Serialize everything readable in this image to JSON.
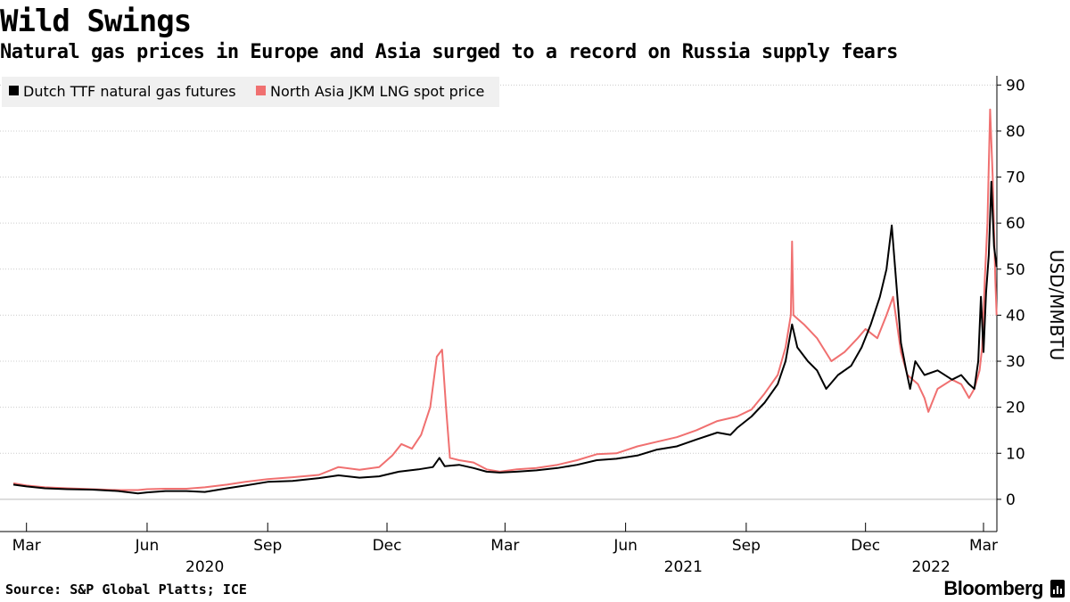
{
  "title": "Wild Swings",
  "subtitle": "Natural gas prices in Europe and Asia surged to a record on Russia supply fears",
  "source": "Source: S&P Global Platts; ICE",
  "brand": "Bloomberg",
  "colors": {
    "ttf": "#000000",
    "jkm": "#f07070",
    "grid": "#cccccc",
    "axis": "#000000",
    "legend_bg": "#f0f0f0"
  },
  "chart_data": {
    "type": "line",
    "ylabel": "USD/MMBTU",
    "ylim": [
      -7,
      92
    ],
    "yticks": [
      0,
      10,
      20,
      30,
      40,
      50,
      60,
      70,
      80,
      90
    ],
    "xlim": [
      "2020-02-20",
      "2022-03-01"
    ],
    "grid": "horizontal",
    "legend": "top-left",
    "xticks": [
      {
        "date": "2020-03-01",
        "label": "Mar"
      },
      {
        "date": "2020-06-01",
        "label": "Jun"
      },
      {
        "date": "2020-09-01",
        "label": "Sep"
      },
      {
        "date": "2020-12-01",
        "label": "Dec"
      },
      {
        "date": "2021-03-01",
        "label": "Mar"
      },
      {
        "date": "2021-06-01",
        "label": "Jun"
      },
      {
        "date": "2021-09-01",
        "label": "Sep"
      },
      {
        "date": "2021-12-01",
        "label": "Dec"
      },
      {
        "date": "2022-03-01",
        "label": "Mar"
      }
    ],
    "years": [
      {
        "date": "2020-07-15",
        "label": "2020"
      },
      {
        "date": "2021-07-15",
        "label": "2021"
      },
      {
        "date": "2022-01-20",
        "label": "2022"
      }
    ],
    "series": [
      {
        "name": "Dutch TTF natural gas futures",
        "points": [
          [
            "2020-02-20",
            3.2
          ],
          [
            "2020-03-01",
            2.8
          ],
          [
            "2020-03-15",
            2.4
          ],
          [
            "2020-04-01",
            2.2
          ],
          [
            "2020-04-20",
            2.1
          ],
          [
            "2020-05-10",
            1.8
          ],
          [
            "2020-05-25",
            1.3
          ],
          [
            "2020-06-01",
            1.5
          ],
          [
            "2020-06-15",
            1.8
          ],
          [
            "2020-07-01",
            1.8
          ],
          [
            "2020-07-15",
            1.6
          ],
          [
            "2020-08-01",
            2.4
          ],
          [
            "2020-08-15",
            3.0
          ],
          [
            "2020-09-01",
            3.8
          ],
          [
            "2020-09-20",
            4.0
          ],
          [
            "2020-10-10",
            4.6
          ],
          [
            "2020-10-25",
            5.2
          ],
          [
            "2020-11-10",
            4.7
          ],
          [
            "2020-11-25",
            5.0
          ],
          [
            "2020-12-10",
            6.0
          ],
          [
            "2020-12-25",
            6.5
          ],
          [
            "2021-01-05",
            7.0
          ],
          [
            "2021-01-10",
            9.0
          ],
          [
            "2021-01-14",
            7.2
          ],
          [
            "2021-01-25",
            7.5
          ],
          [
            "2021-02-05",
            6.8
          ],
          [
            "2021-02-15",
            6.0
          ],
          [
            "2021-02-25",
            5.8
          ],
          [
            "2021-03-10",
            6.0
          ],
          [
            "2021-03-25",
            6.3
          ],
          [
            "2021-04-10",
            6.8
          ],
          [
            "2021-04-25",
            7.5
          ],
          [
            "2021-05-10",
            8.5
          ],
          [
            "2021-05-25",
            8.8
          ],
          [
            "2021-06-10",
            9.5
          ],
          [
            "2021-06-25",
            10.8
          ],
          [
            "2021-07-10",
            11.5
          ],
          [
            "2021-07-25",
            13.0
          ],
          [
            "2021-08-10",
            14.5
          ],
          [
            "2021-08-20",
            14.0
          ],
          [
            "2021-08-25",
            15.5
          ],
          [
            "2021-09-05",
            18.0
          ],
          [
            "2021-09-15",
            21.0
          ],
          [
            "2021-09-25",
            25.0
          ],
          [
            "2021-10-01",
            30.0
          ],
          [
            "2021-10-06",
            38.0
          ],
          [
            "2021-10-10",
            33.0
          ],
          [
            "2021-10-18",
            30.0
          ],
          [
            "2021-10-25",
            28.0
          ],
          [
            "2021-11-01",
            24.0
          ],
          [
            "2021-11-10",
            27.0
          ],
          [
            "2021-11-20",
            29.0
          ],
          [
            "2021-11-28",
            33.0
          ],
          [
            "2021-12-05",
            38.0
          ],
          [
            "2021-12-12",
            44.0
          ],
          [
            "2021-12-17",
            50.0
          ],
          [
            "2021-12-21",
            59.5
          ],
          [
            "2021-12-25",
            45.0
          ],
          [
            "2021-12-28",
            34.0
          ],
          [
            "2022-01-01",
            28.0
          ],
          [
            "2022-01-04",
            24.0
          ],
          [
            "2022-01-08",
            30.0
          ],
          [
            "2022-01-15",
            27.0
          ],
          [
            "2022-01-25",
            28.0
          ],
          [
            "2022-02-05",
            26.0
          ],
          [
            "2022-02-12",
            27.0
          ],
          [
            "2022-02-18",
            25.0
          ],
          [
            "2022-02-22",
            24.0
          ],
          [
            "2022-02-25",
            30.0
          ],
          [
            "2022-02-27",
            44.0
          ],
          [
            "2022-03-01",
            32.0
          ],
          [
            "2022-03-03",
            45.0
          ],
          [
            "2022-03-05",
            53.0
          ],
          [
            "2022-03-07",
            69.0
          ],
          [
            "2022-03-09",
            55.0
          ],
          [
            "2022-03-11",
            50.5
          ]
        ]
      },
      {
        "name": "North Asia JKM LNG spot price",
        "points": [
          [
            "2020-02-20",
            3.5
          ],
          [
            "2020-03-01",
            3.0
          ],
          [
            "2020-03-15",
            2.6
          ],
          [
            "2020-04-01",
            2.4
          ],
          [
            "2020-04-20",
            2.2
          ],
          [
            "2020-05-10",
            2.0
          ],
          [
            "2020-05-25",
            2.0
          ],
          [
            "2020-06-01",
            2.2
          ],
          [
            "2020-06-15",
            2.3
          ],
          [
            "2020-07-01",
            2.3
          ],
          [
            "2020-07-15",
            2.6
          ],
          [
            "2020-08-01",
            3.2
          ],
          [
            "2020-08-15",
            3.8
          ],
          [
            "2020-09-01",
            4.4
          ],
          [
            "2020-09-20",
            4.8
          ],
          [
            "2020-10-10",
            5.3
          ],
          [
            "2020-10-25",
            7.0
          ],
          [
            "2020-11-10",
            6.4
          ],
          [
            "2020-11-25",
            7.0
          ],
          [
            "2020-12-05",
            9.5
          ],
          [
            "2020-12-12",
            12.0
          ],
          [
            "2020-12-20",
            11.0
          ],
          [
            "2020-12-27",
            14.0
          ],
          [
            "2021-01-03",
            20.0
          ],
          [
            "2021-01-08",
            31.0
          ],
          [
            "2021-01-12",
            32.5
          ],
          [
            "2021-01-15",
            20.0
          ],
          [
            "2021-01-18",
            9.0
          ],
          [
            "2021-01-25",
            8.5
          ],
          [
            "2021-02-05",
            8.0
          ],
          [
            "2021-02-15",
            6.5
          ],
          [
            "2021-02-25",
            6.0
          ],
          [
            "2021-03-10",
            6.5
          ],
          [
            "2021-03-25",
            6.8
          ],
          [
            "2021-04-10",
            7.5
          ],
          [
            "2021-04-25",
            8.5
          ],
          [
            "2021-05-10",
            9.8
          ],
          [
            "2021-05-25",
            10.0
          ],
          [
            "2021-06-10",
            11.5
          ],
          [
            "2021-06-25",
            12.5
          ],
          [
            "2021-07-10",
            13.5
          ],
          [
            "2021-07-25",
            15.0
          ],
          [
            "2021-08-10",
            17.0
          ],
          [
            "2021-08-25",
            18.0
          ],
          [
            "2021-09-05",
            19.5
          ],
          [
            "2021-09-15",
            23.0
          ],
          [
            "2021-09-25",
            27.0
          ],
          [
            "2021-10-01",
            33.0
          ],
          [
            "2021-10-05",
            40.0
          ],
          [
            "2021-10-06",
            56.0
          ],
          [
            "2021-10-07",
            40.0
          ],
          [
            "2021-10-15",
            38.0
          ],
          [
            "2021-10-25",
            35.0
          ],
          [
            "2021-11-05",
            30.0
          ],
          [
            "2021-11-15",
            32.0
          ],
          [
            "2021-11-25",
            35.0
          ],
          [
            "2021-12-01",
            37.0
          ],
          [
            "2021-12-10",
            35.0
          ],
          [
            "2021-12-17",
            40.0
          ],
          [
            "2021-12-22",
            44.0
          ],
          [
            "2021-12-28",
            32.0
          ],
          [
            "2022-01-02",
            27.0
          ],
          [
            "2022-01-10",
            25.0
          ],
          [
            "2022-01-15",
            22.0
          ],
          [
            "2022-01-18",
            19.0
          ],
          [
            "2022-01-25",
            24.0
          ],
          [
            "2022-02-05",
            26.0
          ],
          [
            "2022-02-12",
            25.0
          ],
          [
            "2022-02-18",
            22.0
          ],
          [
            "2022-02-22",
            24.0
          ],
          [
            "2022-02-26",
            28.0
          ],
          [
            "2022-02-28",
            33.0
          ],
          [
            "2022-03-02",
            48.0
          ],
          [
            "2022-03-04",
            60.0
          ],
          [
            "2022-03-06",
            84.7
          ],
          [
            "2022-03-08",
            70.0
          ],
          [
            "2022-03-10",
            48.0
          ],
          [
            "2022-03-11",
            40.0
          ]
        ]
      }
    ]
  }
}
